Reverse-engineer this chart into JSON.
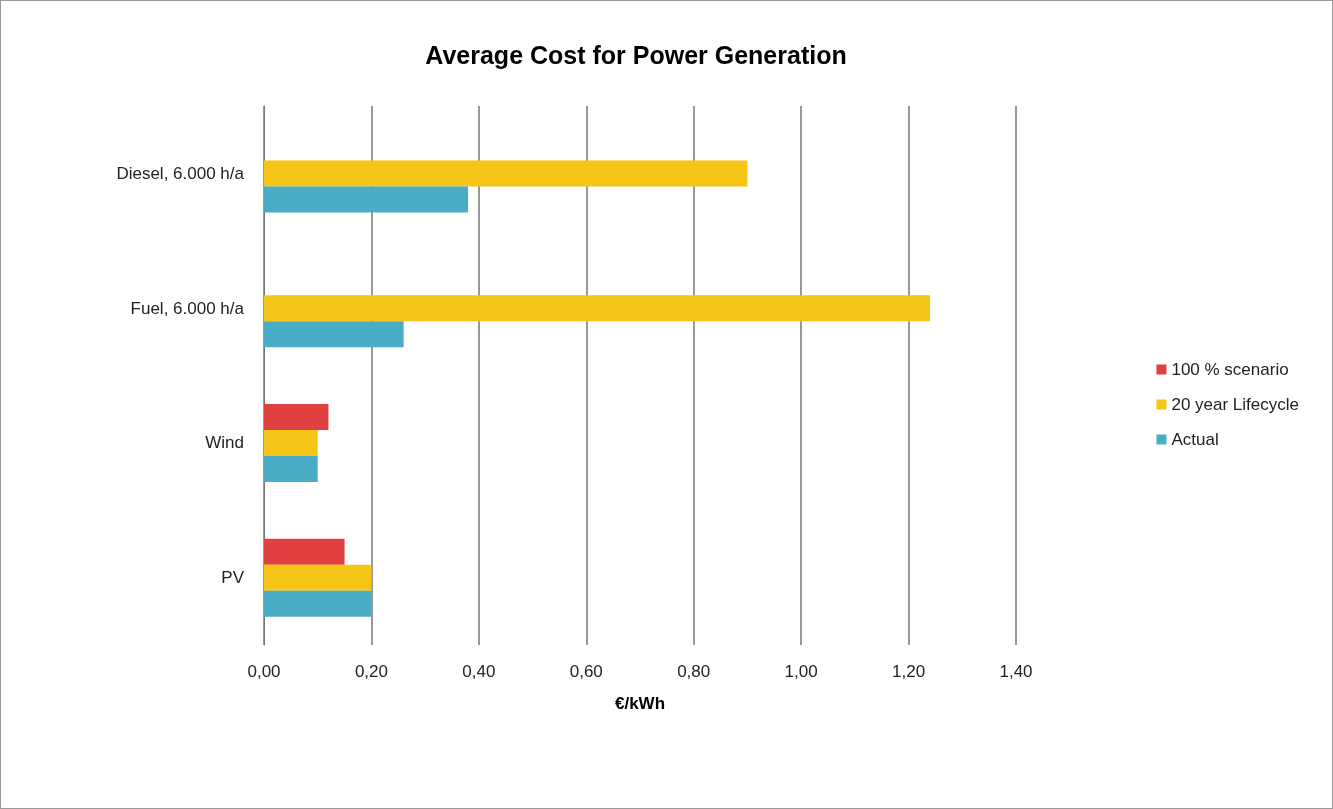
{
  "chart_data": {
    "type": "bar",
    "orientation": "horizontal",
    "title": "Average Cost for Power Generation",
    "xlabel": "€/kWh",
    "categories": [
      "Diesel, 6.000 h/a",
      "Fuel, 6.000 h/a",
      "Wind",
      "PV"
    ],
    "series": [
      {
        "name": "100 % scenario",
        "color": "#e0403f",
        "values": [
          null,
          null,
          0.12,
          0.15
        ]
      },
      {
        "name": "20 year Lifecycle",
        "color": "#f5c518",
        "values": [
          0.9,
          1.24,
          0.1,
          0.2
        ]
      },
      {
        "name": "Actual",
        "color": "#4bacc6",
        "values": [
          0.38,
          0.26,
          0.1,
          0.2
        ]
      }
    ],
    "xlim": [
      0,
      1.4
    ],
    "xticks": [
      {
        "value": 0,
        "label": "0,00"
      },
      {
        "value": 0.2,
        "label": "0,20"
      },
      {
        "value": 0.4,
        "label": "0,40"
      },
      {
        "value": 0.6,
        "label": "0,60"
      },
      {
        "value": 0.8,
        "label": "0,80"
      },
      {
        "value": 1,
        "label": "1,00"
      },
      {
        "value": 1.2,
        "label": "1,20"
      },
      {
        "value": 1.4,
        "label": "1,40"
      }
    ],
    "grid": "x",
    "legend": "right"
  }
}
